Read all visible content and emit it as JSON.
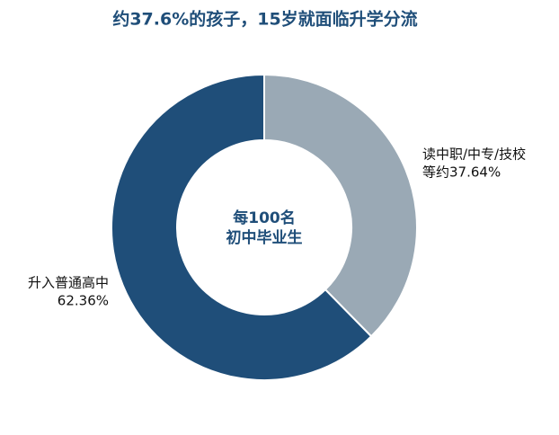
{
  "chart_data": {
    "type": "donut",
    "title": "约37.6%的孩子，15岁就面临升学分流",
    "center_text": [
      "每100名",
      "初中毕业生"
    ],
    "categories": [
      "读中职/中专/技校",
      "升入普通高中"
    ],
    "values": [
      37.64,
      62.36
    ],
    "value_labels": [
      "等约37.64%",
      "62.36%"
    ],
    "colors": [
      "#9aa9b5",
      "#1f4e79"
    ]
  }
}
